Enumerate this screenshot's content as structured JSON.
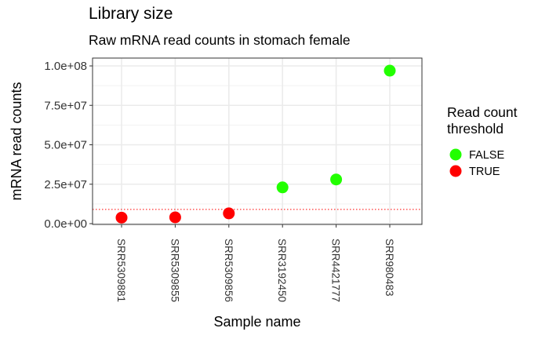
{
  "chart_data": {
    "type": "scatter",
    "title": "Library size",
    "subtitle": "Raw mRNA read counts in stomach female",
    "xlabel": "Sample name",
    "ylabel": "mRNA read counts",
    "categories": [
      "SRR5309881",
      "SRR5309855",
      "SRR5309856",
      "SRR3192450",
      "SRR4421777",
      "SRR980483"
    ],
    "values": [
      3800000,
      4000000,
      6500000,
      23000000,
      28000000,
      97000000
    ],
    "threshold_flags": [
      "TRUE",
      "TRUE",
      "TRUE",
      "FALSE",
      "FALSE",
      "FALSE"
    ],
    "threshold_line": 9000000,
    "ylim": [
      0,
      100000000
    ],
    "yticks": [
      0,
      25000000,
      50000000,
      75000000,
      100000000
    ],
    "ytick_labels": [
      "0.0e+00",
      "2.5e+07",
      "5.0e+07",
      "7.5e+07",
      "1.0e+08"
    ],
    "grid": true,
    "legend": {
      "title_lines": [
        "Read count",
        "threshold"
      ],
      "placement": "right",
      "entries": [
        {
          "label": "FALSE",
          "color": "#22ff00"
        },
        {
          "label": "TRUE",
          "color": "#ff0000"
        }
      ]
    },
    "threshold_line_color": "#ff0000"
  }
}
